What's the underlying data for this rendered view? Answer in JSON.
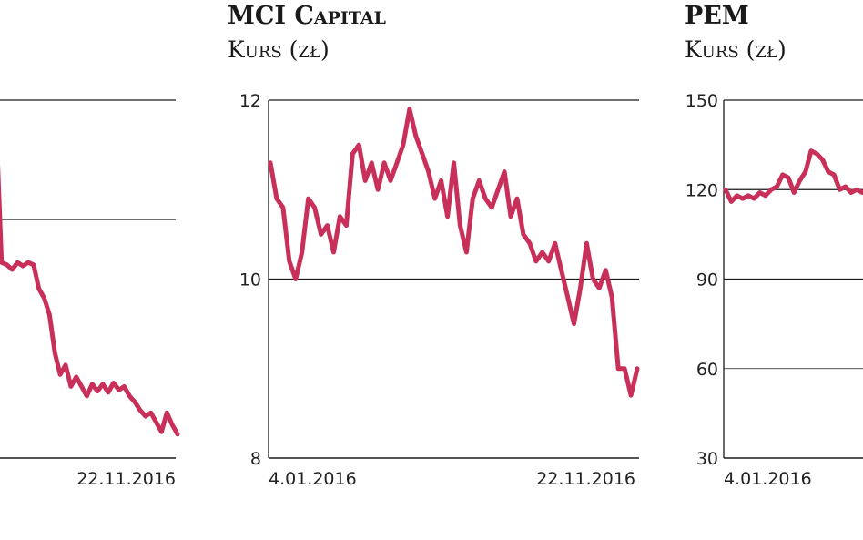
{
  "colors": {
    "line": "#c8305a",
    "axis": "#1a1a1a",
    "grid": "#1a1a1a"
  },
  "chart_data": [
    {
      "type": "line",
      "title": "",
      "subtitle": "",
      "ylim": [
        null,
        null
      ],
      "yticks": [],
      "xtick_labels": [
        "",
        "22.11.2016"
      ],
      "grid": true,
      "series": [
        {
          "values": [
            3.35,
            3.78,
            2.64,
            2.62,
            2.58,
            2.64,
            2.61,
            2.64,
            2.62,
            2.42,
            2.34,
            2.2,
            1.88,
            1.7,
            1.78,
            1.6,
            1.68,
            1.6,
            1.52,
            1.62,
            1.56,
            1.62,
            1.55,
            1.63,
            1.57,
            1.6,
            1.52,
            1.47,
            1.4,
            1.35,
            1.38,
            1.3,
            1.22,
            1.38,
            1.28,
            1.2
          ]
        }
      ]
    },
    {
      "type": "line",
      "title": "MCI Capital",
      "subtitle": "Kurs (zł)",
      "ylim": [
        8,
        12
      ],
      "yticks": [
        8,
        10,
        12
      ],
      "xtick_labels": [
        "4.01.2016",
        "22.11.2016"
      ],
      "grid": true,
      "series": [
        {
          "values": [
            11.3,
            10.9,
            10.8,
            10.2,
            10.0,
            10.3,
            10.9,
            10.8,
            10.5,
            10.6,
            10.3,
            10.7,
            10.6,
            11.4,
            11.5,
            11.1,
            11.3,
            11.0,
            11.3,
            11.1,
            11.3,
            11.5,
            11.9,
            11.6,
            11.4,
            11.2,
            10.9,
            11.1,
            10.7,
            11.3,
            10.6,
            10.3,
            10.9,
            11.1,
            10.9,
            10.8,
            11.0,
            11.2,
            10.7,
            10.9,
            10.5,
            10.4,
            10.2,
            10.3,
            10.2,
            10.4,
            10.1,
            9.8,
            9.5,
            9.9,
            10.4,
            10.0,
            9.9,
            10.1,
            9.8,
            9.0,
            9.0,
            8.7,
            9.0
          ]
        }
      ]
    },
    {
      "type": "line",
      "title": "PEM",
      "subtitle": "Kurs (zł)",
      "ylim": [
        30,
        150
      ],
      "yticks": [
        30,
        60,
        90,
        120,
        150
      ],
      "xtick_labels": [
        "4.01.2016",
        ""
      ],
      "grid": true,
      "series": [
        {
          "values": [
            120,
            116,
            118,
            117,
            118,
            117,
            119,
            118,
            120,
            121,
            125,
            124,
            119,
            123,
            126,
            133,
            132,
            130,
            126,
            125,
            120,
            121,
            119,
            120,
            119,
            120,
            119
          ]
        }
      ]
    }
  ]
}
